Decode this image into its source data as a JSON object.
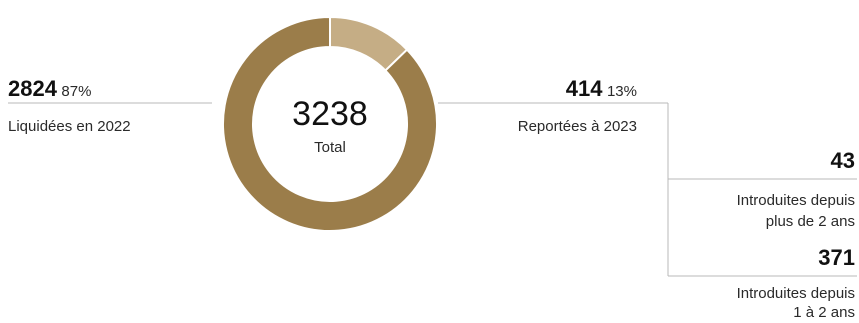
{
  "chart_data": {
    "type": "pie",
    "center": {
      "value": "3238",
      "label": "Total"
    },
    "slices": [
      {
        "value": 2824,
        "value_text": "2824",
        "percent_text": "87%",
        "label": "Liquidées en 2022",
        "color": "#9b7d4a"
      },
      {
        "value": 414,
        "value_text": "414",
        "percent_text": "13%",
        "label": "Reportées à 2023",
        "color": "#c5ad85"
      }
    ],
    "breakdown": [
      {
        "value": 43,
        "value_text": "43",
        "label_line1": "Introduites depuis",
        "label_line2": "plus de 2 ans"
      },
      {
        "value": 371,
        "value_text": "371",
        "label_line1": "Introduites depuis",
        "label_line2": "1 à 2 ans"
      }
    ]
  }
}
